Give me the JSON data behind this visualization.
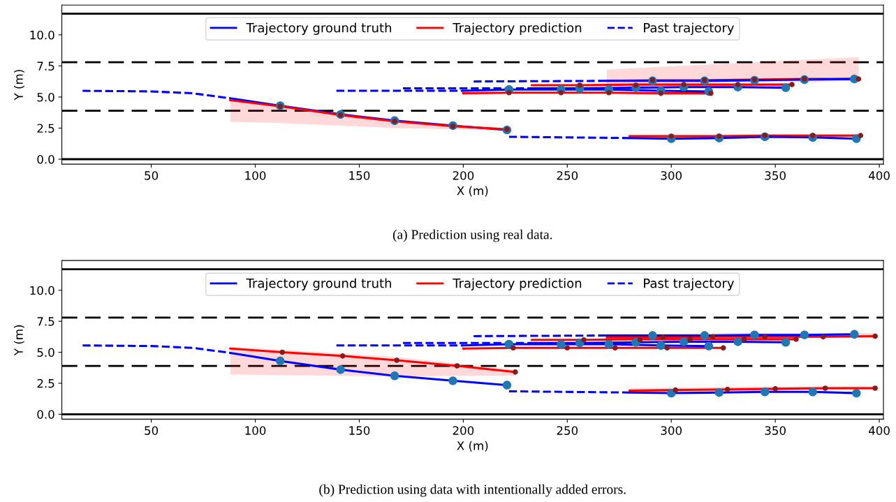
{
  "chart_data": [
    {
      "type": "line",
      "xlabel": "X (m)",
      "ylabel": "Y (m)",
      "xlim": [
        7,
        402
      ],
      "ylim": [
        -0.4,
        12.4
      ],
      "xticks": [
        50,
        100,
        150,
        200,
        250,
        300,
        350,
        400
      ],
      "yticks": [
        {
          "value": 0,
          "label": "0.0"
        },
        {
          "value": 2.5,
          "label": "2.5"
        },
        {
          "value": 5,
          "label": "5.0"
        },
        {
          "value": 7.5,
          "label": "7.5"
        },
        {
          "value": 10,
          "label": "10.0"
        }
      ],
      "grid": false,
      "legend": "top",
      "annotations": [
        "(a) Prediction using real data."
      ],
      "ref_lines": [
        {
          "axis": "y",
          "value": 0,
          "color": "#000000",
          "line_style": "solid"
        },
        {
          "axis": "y",
          "value": 3.9,
          "color": "#000000",
          "line_style": "dashed"
        },
        {
          "axis": "y",
          "value": 7.8,
          "color": "#000000",
          "line_style": "dashed"
        },
        {
          "axis": "y",
          "value": 11.7,
          "color": "#000000",
          "line_style": "solid"
        }
      ],
      "series": [
        {
          "name": "Trajectory ground truth",
          "type": "line",
          "color": "#0000ff",
          "line_style": "solid",
          "marker": "none",
          "x": [
            88,
            112,
            141,
            167,
            195,
            221
          ],
          "values": [
            4.9,
            4.3,
            3.6,
            3.1,
            2.7,
            2.35
          ]
        },
        {
          "name": "Trajectory prediction",
          "type": "line",
          "color": "#ff0000",
          "line_style": "solid",
          "marker": "none",
          "x": [
            88,
            112,
            141,
            167,
            195,
            221
          ],
          "values": [
            4.75,
            4.25,
            3.55,
            3.05,
            2.65,
            2.4
          ],
          "lower": [
            3.0,
            2.9,
            2.7,
            2.5,
            2.4,
            2.3
          ],
          "upper": [
            4.9,
            4.4,
            3.75,
            3.2,
            2.8,
            2.5
          ]
        },
        {
          "name": "Past trajectory",
          "type": "line",
          "color": "#0000ff",
          "line_style": "dashed",
          "marker": "none",
          "x": [
            17,
            50,
            70,
            88
          ],
          "values": [
            5.5,
            5.45,
            5.3,
            4.9
          ]
        },
        {
          "type": "line",
          "color": "#0000ff",
          "line_style": "dashed",
          "marker": "none",
          "x": [
            139,
            200
          ],
          "values": [
            5.5,
            5.5
          ]
        },
        {
          "type": "line",
          "color": "#ff0000",
          "line_style": "solid",
          "marker": "none",
          "x": [
            200,
            222,
            247,
            270,
            295,
            319
          ],
          "values": [
            5.3,
            5.35,
            5.35,
            5.35,
            5.3,
            5.3
          ]
        },
        {
          "type": "line",
          "color": "#0000ff",
          "line_style": "solid",
          "marker": "none",
          "x": [
            200,
            222,
            247,
            270,
            295,
            318
          ],
          "values": [
            5.5,
            5.6,
            5.6,
            5.6,
            5.5,
            5.45
          ]
        },
        {
          "type": "line",
          "color": "#0000ff",
          "line_style": "dashed",
          "marker": "none",
          "x": [
            171,
            233
          ],
          "values": [
            5.7,
            5.7
          ]
        },
        {
          "type": "line",
          "color": "#ff0000",
          "line_style": "solid",
          "marker": "none",
          "x": [
            233,
            256,
            283,
            306,
            332,
            358
          ],
          "values": [
            5.95,
            5.95,
            6.0,
            6.0,
            6.0,
            6.0
          ]
        },
        {
          "type": "line",
          "color": "#0000ff",
          "line_style": "solid",
          "marker": "none",
          "x": [
            233,
            256,
            283,
            306,
            332,
            355
          ],
          "values": [
            5.7,
            5.7,
            5.75,
            5.8,
            5.8,
            5.75
          ]
        },
        {
          "type": "line",
          "color": "#0000ff",
          "line_style": "dashed",
          "marker": "none",
          "x": [
            205,
            269
          ],
          "values": [
            6.25,
            6.3
          ]
        },
        {
          "type": "line",
          "color": "#ff0000",
          "line_style": "solid",
          "marker": "none",
          "x": [
            269,
            291,
            316,
            340,
            364,
            390
          ],
          "values": [
            6.3,
            6.35,
            6.35,
            6.4,
            6.45,
            6.45
          ],
          "lower": [
            6.0,
            6.1,
            6.1,
            6.2,
            6.2,
            6.3
          ],
          "upper": [
            7.2,
            7.4,
            7.6,
            7.8,
            8.0,
            8.2
          ]
        },
        {
          "type": "line",
          "color": "#0000ff",
          "line_style": "solid",
          "marker": "none",
          "x": [
            269,
            291,
            316,
            340,
            364,
            388
          ],
          "values": [
            6.3,
            6.3,
            6.3,
            6.35,
            6.4,
            6.45
          ]
        },
        {
          "type": "line",
          "color": "#0000ff",
          "line_style": "dashed",
          "marker": "none",
          "x": [
            222,
            280
          ],
          "values": [
            1.8,
            1.7
          ]
        },
        {
          "type": "line",
          "color": "#ff0000",
          "line_style": "solid",
          "marker": "none",
          "x": [
            280,
            300,
            323,
            345,
            368,
            391
          ],
          "values": [
            1.85,
            1.85,
            1.85,
            1.9,
            1.9,
            1.9
          ],
          "lower": [
            1.7,
            1.7,
            1.7,
            1.75,
            1.75,
            1.8
          ],
          "upper": [
            2.0,
            2.0,
            2.0,
            2.05,
            2.05,
            2.05
          ]
        },
        {
          "type": "line",
          "color": "#0000ff",
          "line_style": "solid",
          "marker": "none",
          "x": [
            280,
            300,
            323,
            345,
            368,
            389
          ],
          "values": [
            1.7,
            1.65,
            1.7,
            1.8,
            1.75,
            1.65
          ]
        },
        {
          "type": "scatter",
          "color": "#1f77b4",
          "marker": "circle",
          "x": [
            112,
            141,
            167,
            195,
            221,
            222,
            247,
            270,
            295,
            318,
            256,
            283,
            306,
            332,
            355,
            291,
            316,
            340,
            364,
            388,
            300,
            323,
            345,
            368,
            389
          ],
          "values": [
            4.3,
            3.6,
            3.1,
            2.7,
            2.35,
            5.6,
            5.6,
            5.6,
            5.5,
            5.45,
            5.7,
            5.75,
            5.8,
            5.8,
            5.75,
            6.3,
            6.3,
            6.35,
            6.4,
            6.45,
            1.65,
            1.7,
            1.8,
            1.75,
            1.65
          ]
        },
        {
          "type": "scatter",
          "color": "#8b1a1a",
          "marker": "circle",
          "x": [
            112,
            141,
            167,
            195,
            221,
            222,
            247,
            270,
            295,
            319,
            256,
            283,
            306,
            332,
            358,
            291,
            316,
            340,
            364,
            390,
            300,
            323,
            345,
            368,
            391
          ],
          "values": [
            4.25,
            3.55,
            3.05,
            2.65,
            2.4,
            5.35,
            5.35,
            5.35,
            5.3,
            5.3,
            5.95,
            5.95,
            6.0,
            6.0,
            6.0,
            6.35,
            6.35,
            6.4,
            6.45,
            6.45,
            1.85,
            1.85,
            1.9,
            1.9,
            1.9
          ]
        }
      ]
    },
    {
      "type": "line",
      "xlabel": "X (m)",
      "ylabel": "Y (m)",
      "xlim": [
        7,
        402
      ],
      "ylim": [
        -0.4,
        12.4
      ],
      "xticks": [
        50,
        100,
        150,
        200,
        250,
        300,
        350,
        400
      ],
      "yticks": [
        {
          "value": 0,
          "label": "0.0"
        },
        {
          "value": 2.5,
          "label": "2.5"
        },
        {
          "value": 5,
          "label": "5.0"
        },
        {
          "value": 7.5,
          "label": "7.5"
        },
        {
          "value": 10,
          "label": "10.0"
        }
      ],
      "grid": false,
      "legend": "top",
      "annotations": [
        "(b) Prediction using data with intentionally added errors."
      ],
      "ref_lines": [
        {
          "axis": "y",
          "value": 0,
          "color": "#000000",
          "line_style": "solid"
        },
        {
          "axis": "y",
          "value": 3.9,
          "color": "#000000",
          "line_style": "dashed"
        },
        {
          "axis": "y",
          "value": 7.8,
          "color": "#000000",
          "line_style": "dashed"
        },
        {
          "axis": "y",
          "value": 11.7,
          "color": "#000000",
          "line_style": "solid"
        }
      ],
      "series": [
        {
          "name": "Trajectory ground truth",
          "type": "line",
          "color": "#0000ff",
          "line_style": "solid",
          "marker": "none",
          "x": [
            88,
            112,
            141,
            167,
            195,
            221
          ],
          "values": [
            4.95,
            4.3,
            3.6,
            3.1,
            2.7,
            2.35
          ]
        },
        {
          "name": "Trajectory prediction",
          "type": "line",
          "color": "#ff0000",
          "line_style": "solid",
          "marker": "none",
          "x": [
            88,
            113,
            142,
            168,
            197,
            225
          ],
          "values": [
            5.3,
            5.0,
            4.7,
            4.35,
            3.9,
            3.4
          ],
          "lower": [
            3.2,
            3.15,
            3.1,
            3.05,
            3.1,
            3.1
          ],
          "upper": [
            5.45,
            5.2,
            4.9,
            4.6,
            4.1,
            3.6
          ]
        },
        {
          "name": "Past trajectory",
          "type": "line",
          "color": "#0000ff",
          "line_style": "dashed",
          "marker": "none",
          "x": [
            17,
            50,
            70,
            88
          ],
          "values": [
            5.55,
            5.5,
            5.35,
            4.95
          ]
        },
        {
          "type": "line",
          "color": "#0000ff",
          "line_style": "dashed",
          "marker": "none",
          "x": [
            139,
            200
          ],
          "values": [
            5.55,
            5.55
          ]
        },
        {
          "type": "line",
          "color": "#ff0000",
          "line_style": "solid",
          "marker": "none",
          "x": [
            200,
            224,
            250,
            273,
            298,
            325
          ],
          "values": [
            5.3,
            5.35,
            5.35,
            5.35,
            5.35,
            5.35
          ]
        },
        {
          "type": "line",
          "color": "#0000ff",
          "line_style": "solid",
          "marker": "none",
          "x": [
            200,
            222,
            247,
            270,
            295,
            318
          ],
          "values": [
            5.55,
            5.65,
            5.65,
            5.65,
            5.55,
            5.5
          ]
        },
        {
          "type": "line",
          "color": "#0000ff",
          "line_style": "dashed",
          "marker": "none",
          "x": [
            171,
            233
          ],
          "values": [
            5.75,
            5.75
          ]
        },
        {
          "type": "line",
          "color": "#ff0000",
          "line_style": "solid",
          "marker": "none",
          "x": [
            233,
            258,
            285,
            309,
            335,
            360
          ],
          "values": [
            6.0,
            6.0,
            6.05,
            6.05,
            6.05,
            6.05
          ]
        },
        {
          "type": "line",
          "color": "#0000ff",
          "line_style": "solid",
          "marker": "none",
          "x": [
            233,
            256,
            283,
            306,
            332,
            355
          ],
          "values": [
            5.75,
            5.75,
            5.8,
            5.85,
            5.85,
            5.8
          ]
        },
        {
          "type": "line",
          "color": "#0000ff",
          "line_style": "dashed",
          "marker": "none",
          "x": [
            205,
            269
          ],
          "values": [
            6.3,
            6.35
          ]
        },
        {
          "type": "line",
          "color": "#ff0000",
          "line_style": "solid",
          "marker": "none",
          "x": [
            269,
            296,
            320,
            345,
            373,
            398
          ],
          "values": [
            6.2,
            6.2,
            6.25,
            6.25,
            6.25,
            6.3
          ],
          "lower": [
            6.0,
            6.05,
            6.1,
            6.1,
            6.15,
            6.2
          ],
          "upper": [
            6.5,
            6.5,
            6.55,
            6.55,
            6.55,
            6.55
          ]
        },
        {
          "type": "line",
          "color": "#0000ff",
          "line_style": "solid",
          "marker": "none",
          "x": [
            269,
            291,
            316,
            340,
            364,
            388
          ],
          "values": [
            6.35,
            6.35,
            6.35,
            6.4,
            6.4,
            6.45
          ]
        },
        {
          "type": "line",
          "color": "#0000ff",
          "line_style": "dashed",
          "marker": "none",
          "x": [
            222,
            280
          ],
          "values": [
            1.85,
            1.75
          ]
        },
        {
          "type": "line",
          "color": "#ff0000",
          "line_style": "solid",
          "marker": "none",
          "x": [
            280,
            302,
            327,
            350,
            374,
            398
          ],
          "values": [
            1.9,
            1.95,
            2.0,
            2.05,
            2.1,
            2.1
          ],
          "lower": [
            1.75,
            1.8,
            1.85,
            1.9,
            1.95,
            2.0
          ],
          "upper": [
            2.1,
            2.15,
            2.2,
            2.25,
            2.25,
            2.25
          ]
        },
        {
          "type": "line",
          "color": "#0000ff",
          "line_style": "solid",
          "marker": "none",
          "x": [
            280,
            300,
            323,
            345,
            368,
            389
          ],
          "values": [
            1.75,
            1.7,
            1.75,
            1.8,
            1.8,
            1.7
          ]
        },
        {
          "type": "scatter",
          "color": "#1f77b4",
          "marker": "circle",
          "x": [
            112,
            141,
            167,
            195,
            221,
            222,
            247,
            270,
            295,
            318,
            256,
            283,
            306,
            332,
            355,
            291,
            316,
            340,
            364,
            388,
            300,
            323,
            345,
            368,
            389
          ],
          "values": [
            4.3,
            3.6,
            3.1,
            2.7,
            2.35,
            5.65,
            5.65,
            5.65,
            5.55,
            5.5,
            5.75,
            5.8,
            5.85,
            5.85,
            5.8,
            6.35,
            6.35,
            6.4,
            6.4,
            6.45,
            1.7,
            1.75,
            1.8,
            1.8,
            1.7
          ]
        },
        {
          "type": "scatter",
          "color": "#8b1a1a",
          "marker": "circle",
          "x": [
            113,
            142,
            168,
            197,
            225,
            224,
            250,
            273,
            298,
            325,
            258,
            285,
            309,
            335,
            360,
            296,
            320,
            345,
            373,
            398,
            302,
            327,
            350,
            374,
            398
          ],
          "values": [
            5.0,
            4.7,
            4.35,
            3.9,
            3.4,
            5.35,
            5.35,
            5.35,
            5.35,
            5.35,
            6.0,
            6.0,
            6.05,
            6.05,
            6.05,
            6.2,
            6.25,
            6.25,
            6.25,
            6.3,
            1.95,
            2.0,
            2.05,
            2.1,
            2.1
          ]
        }
      ]
    }
  ]
}
